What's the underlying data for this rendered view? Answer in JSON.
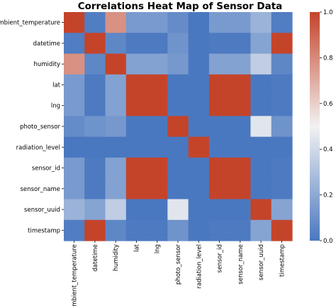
{
  "chart_data": {
    "type": "heatmap",
    "title": "Correlations Heat Map of Sensor Data",
    "labels": [
      "ambient_temperature",
      "datetime",
      "humidity",
      "lat",
      "lng",
      "photo_sensor",
      "radiation_level",
      "sensor_id",
      "sensor_name",
      "sensor_uuid",
      "timestamp"
    ],
    "matrix": [
      [
        1.0,
        0.02,
        0.78,
        0.14,
        0.14,
        0.08,
        0.0,
        0.14,
        0.14,
        0.24,
        0.02
      ],
      [
        0.02,
        1.0,
        0.06,
        0.01,
        0.01,
        0.11,
        0.0,
        0.01,
        0.01,
        0.18,
        1.0
      ],
      [
        0.78,
        0.06,
        1.0,
        0.17,
        0.17,
        0.13,
        0.0,
        0.17,
        0.17,
        0.35,
        0.06
      ],
      [
        0.14,
        0.01,
        0.17,
        1.0,
        1.0,
        0.0,
        0.0,
        1.0,
        1.0,
        0.0,
        0.01
      ],
      [
        0.14,
        0.01,
        0.17,
        1.0,
        1.0,
        0.0,
        0.0,
        1.0,
        1.0,
        0.0,
        0.01
      ],
      [
        0.08,
        0.11,
        0.13,
        0.0,
        0.0,
        1.0,
        0.0,
        0.0,
        0.0,
        0.45,
        0.11
      ],
      [
        0.0,
        0.0,
        0.0,
        0.0,
        0.0,
        0.0,
        1.0,
        0.0,
        0.0,
        0.0,
        0.0
      ],
      [
        0.14,
        0.01,
        0.17,
        1.0,
        1.0,
        0.0,
        0.0,
        1.0,
        1.0,
        0.0,
        0.01
      ],
      [
        0.14,
        0.01,
        0.17,
        1.0,
        1.0,
        0.0,
        0.0,
        1.0,
        1.0,
        0.0,
        0.01
      ],
      [
        0.24,
        0.18,
        0.35,
        0.0,
        0.0,
        0.45,
        0.0,
        0.0,
        0.0,
        1.0,
        0.18
      ],
      [
        0.02,
        1.0,
        0.06,
        0.01,
        0.01,
        0.11,
        0.0,
        0.01,
        0.01,
        0.18,
        1.0
      ]
    ],
    "vmin": 0.0,
    "vmax": 1.0,
    "colorbar_ticks": [
      "0.0",
      "0.2",
      "0.4",
      "0.6",
      "0.8",
      "1.0"
    ],
    "colormap": {
      "low": "#4a78c0",
      "mid": "#f2f2f2",
      "high": "#c4442a"
    },
    "grid": false,
    "legend": "colorbar-right"
  }
}
